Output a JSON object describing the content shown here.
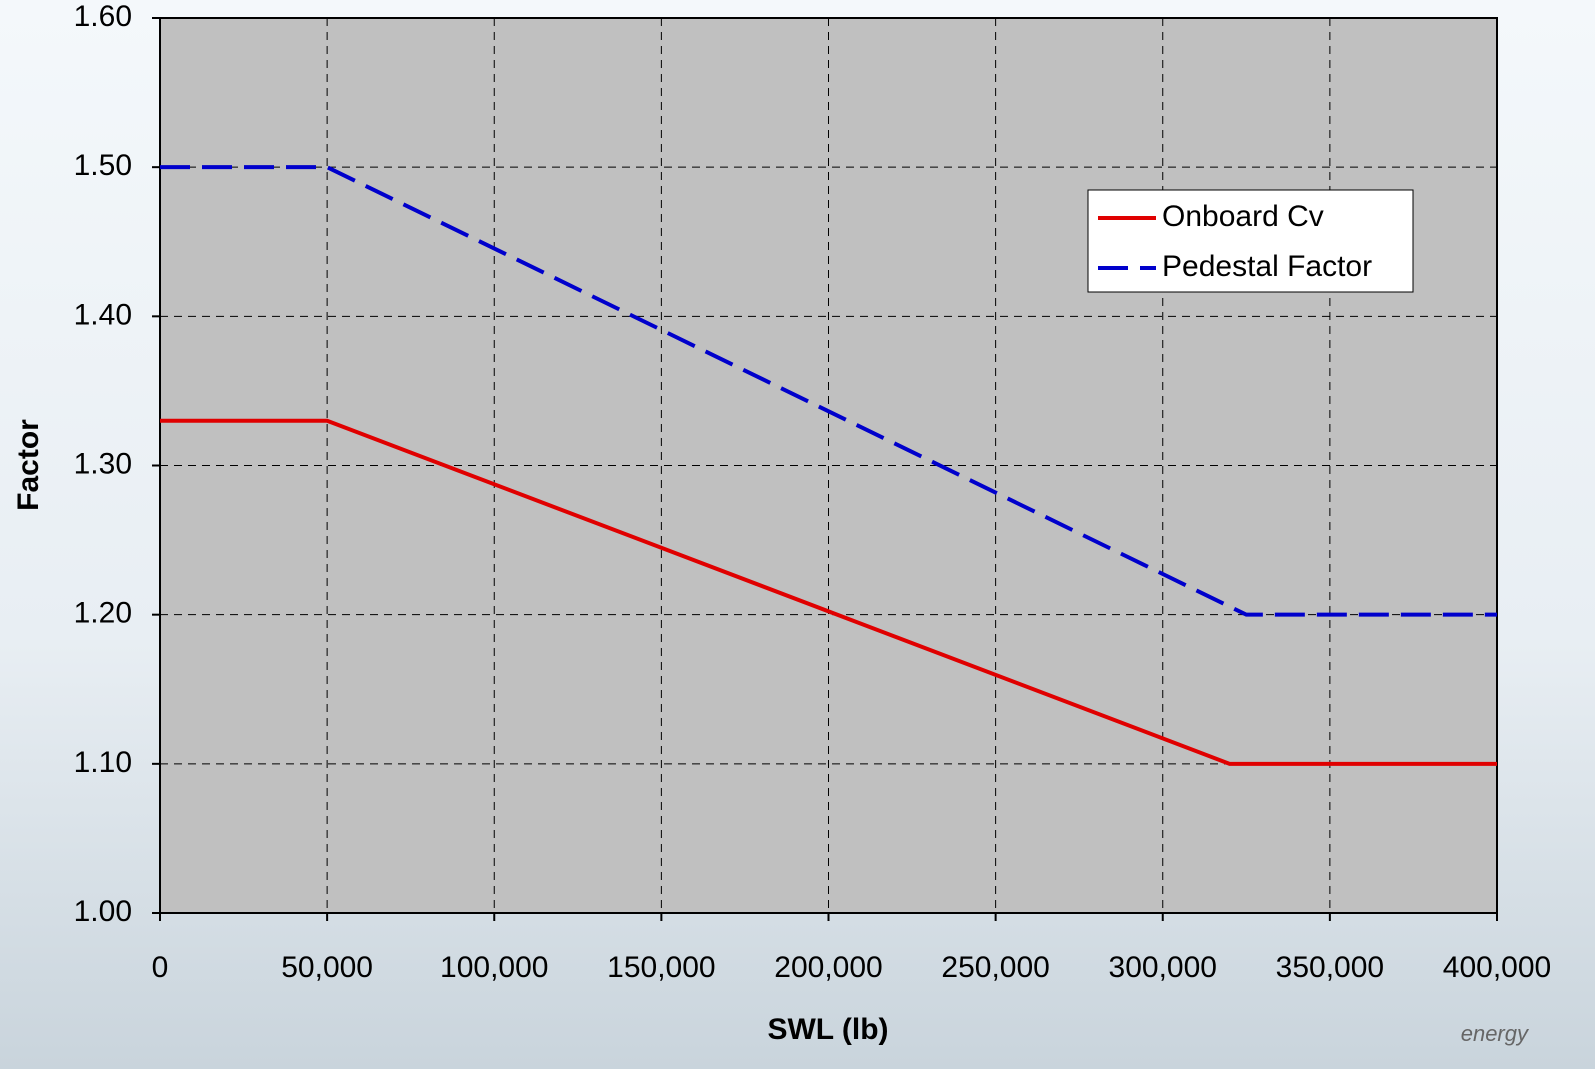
{
  "chart_data": {
    "type": "line",
    "xlabel": "SWL (lb)",
    "ylabel": "Factor",
    "series": [
      {
        "name": "Onboard Cv",
        "color": "#e00000",
        "style": "solid",
        "x": [
          0,
          50000,
          320000,
          400000
        ],
        "values": [
          1.33,
          1.33,
          1.1,
          1.1
        ]
      },
      {
        "name": "Pedestal Factor",
        "color": "#0000cc",
        "style": "dashed",
        "x": [
          0,
          50000,
          325000,
          400000
        ],
        "values": [
          1.5,
          1.5,
          1.2,
          1.2
        ]
      }
    ],
    "xlim": [
      0,
      400000
    ],
    "xticks": [
      0,
      {
        "value": 50000,
        "label": "50,000"
      },
      {
        "value": 100000,
        "label": "100,000"
      },
      {
        "value": 150000,
        "label": "150,000"
      },
      {
        "value": 200000,
        "label": "200,000"
      },
      {
        "value": 250000,
        "label": "250,000"
      },
      {
        "value": 300000,
        "label": "300,000"
      },
      {
        "value": 350000,
        "label": "350,000"
      },
      {
        "value": 400000,
        "label": "400,000"
      }
    ],
    "ylim": [
      1.0,
      1.6
    ],
    "yticks": [
      {
        "value": 1.0,
        "label": "1.00"
      },
      {
        "value": 1.1,
        "label": "1.10"
      },
      {
        "value": 1.2,
        "label": "1.20"
      },
      {
        "value": 1.3,
        "label": "1.30"
      },
      {
        "value": 1.4,
        "label": "1.40"
      },
      {
        "value": 1.5,
        "label": "1.50"
      },
      {
        "value": 1.6,
        "label": "1.60"
      }
    ],
    "grid": true,
    "legend": "upper right",
    "plot_background": "#c0c0c0",
    "logo_text": "energy"
  }
}
